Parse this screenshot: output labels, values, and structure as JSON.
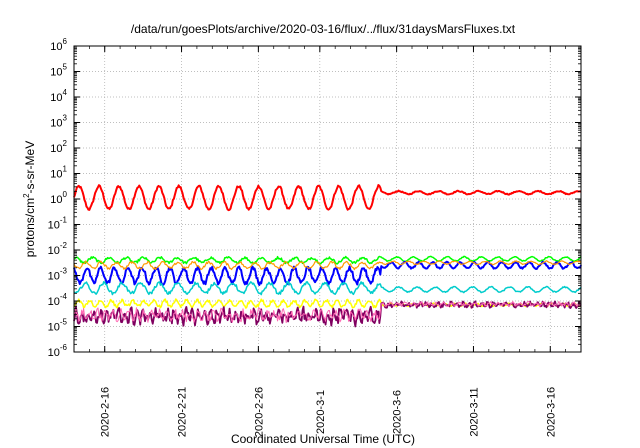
{
  "chart_data": {
    "type": "line",
    "title": "/data/run/goesPlots/archive/2020-03-16/flux/../flux/31daysMarsFluxes.txt",
    "xlabel": "Coordinated Universal Time (UTC)",
    "ylabel": {
      "pre": "protons/cm",
      "sup": "2",
      "post": "-s-sr-MeV"
    },
    "yscale": "log",
    "ylim_exp": [
      -6,
      6
    ],
    "yticks": [
      {
        "base": "10",
        "exp": "-6"
      },
      {
        "base": "10",
        "exp": "-5"
      },
      {
        "base": "10",
        "exp": "-4"
      },
      {
        "base": "10",
        "exp": "-3"
      },
      {
        "base": "10",
        "exp": "-2"
      },
      {
        "base": "10",
        "exp": "-1"
      },
      {
        "base": "10",
        "exp": "0"
      },
      {
        "base": "10",
        "exp": "1"
      },
      {
        "base": "10",
        "exp": "2"
      },
      {
        "base": "10",
        "exp": "3"
      },
      {
        "base": "10",
        "exp": "4"
      },
      {
        "base": "10",
        "exp": "5"
      },
      {
        "base": "10",
        "exp": "6"
      }
    ],
    "xlim": [
      "2020-02-14",
      "2020-03-18"
    ],
    "xticks": [
      "2020-2-16",
      "2020-2-21",
      "2020-2-26",
      "2020-3-1",
      "2020-3-6",
      "2020-3-11",
      "2020-3-16"
    ],
    "grid": true,
    "series": [
      {
        "color": "#ff0000",
        "lw": 2.0,
        "pre_level_exp": 0.05,
        "pre_amp": 0.45,
        "post_level_exp": 0.25,
        "post_amp": 0.06,
        "period_days": 1.3,
        "noise": 0.05
      },
      {
        "color": "#00ff00",
        "lw": 1.5,
        "pre_level_exp": -2.4,
        "pre_amp": 0.1,
        "post_level_exp": -2.35,
        "post_amp": 0.08,
        "period_days": 1.1,
        "noise": 0.05
      },
      {
        "color": "#0000ff",
        "lw": 2.0,
        "pre_level_exp": -3.0,
        "pre_amp": 0.3,
        "post_level_exp": -2.6,
        "post_amp": 0.12,
        "period_days": 0.9,
        "noise": 0.08
      },
      {
        "color": "#ff9900",
        "lw": 1.2,
        "pre_level_exp": -2.6,
        "pre_amp": 0.12,
        "post_level_exp": -2.5,
        "post_amp": 0.06,
        "period_days": 1.0,
        "noise": 0.05
      },
      {
        "color": "#00cccc",
        "lw": 1.5,
        "pre_level_exp": -3.5,
        "pre_amp": 0.2,
        "post_level_exp": -3.55,
        "post_amp": 0.1,
        "period_days": 1.2,
        "noise": 0.06
      },
      {
        "color": "#ffff00",
        "lw": 1.5,
        "pre_level_exp": -4.1,
        "pre_amp": 0.12,
        "post_level_exp": -4.15,
        "post_amp": 0.05,
        "period_days": 0.7,
        "noise": 0.06
      },
      {
        "color": "#800060",
        "lw": 1.8,
        "pre_level_exp": -4.6,
        "pre_amp": 0.2,
        "post_level_exp": -4.15,
        "post_amp": 0.06,
        "period_days": 0.4,
        "noise": 0.2
      },
      {
        "color": "#ff69b4",
        "lw": 1.0,
        "pre_level_exp": -4.55,
        "pre_amp": 0.15,
        "post_level_exp": -4.12,
        "post_amp": 0.05,
        "period_days": 0.5,
        "noise": 0.15
      }
    ],
    "transition_date": "2020-03-05"
  }
}
